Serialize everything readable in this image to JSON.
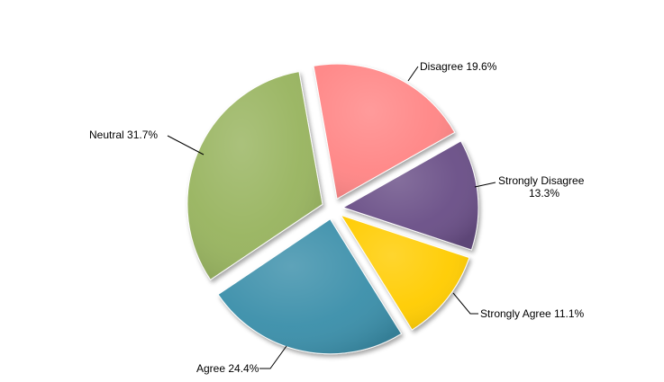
{
  "chart_data": {
    "type": "pie",
    "style": "exploded-3d",
    "start_angle_deg": -10,
    "direction": "clockwise",
    "slices": [
      {
        "label": "Disagree",
        "value_label": "19.6%",
        "value": 19.6,
        "color": "#FF8585"
      },
      {
        "label": "Strongly Disagree",
        "value_label": "13.3%",
        "value": 13.3,
        "color": "#6A5087"
      },
      {
        "label": "Strongly Agree",
        "value_label": "11.1%",
        "value": 11.1,
        "color": "#FFCC00"
      },
      {
        "label": "Agree",
        "value_label": "24.4%",
        "value": 24.4,
        "color": "#3A8FAA"
      },
      {
        "label": "Neutral",
        "value_label": "31.7%",
        "value": 31.7,
        "color": "#98B45E"
      }
    ],
    "labels": [
      {
        "text": "Disagree 19.6%"
      },
      {
        "lines": [
          "Strongly Disagree",
          "13.3%"
        ]
      },
      {
        "text": "Strongly Agree 11.1%"
      },
      {
        "text": "Agree 24.4%"
      },
      {
        "text": "Neutral  31.7%"
      }
    ]
  }
}
